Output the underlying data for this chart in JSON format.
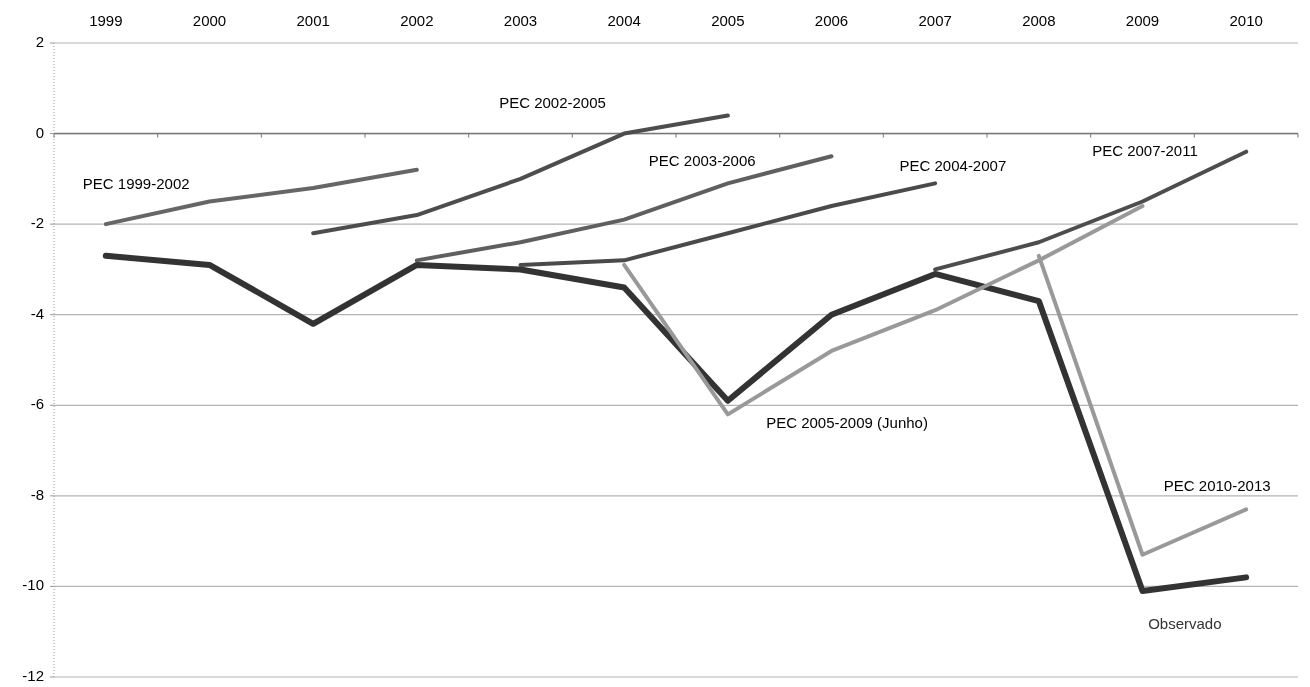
{
  "chart_data": {
    "type": "line",
    "categories": [
      "1999",
      "2000",
      "2001",
      "2002",
      "2003",
      "2004",
      "2005",
      "2006",
      "2007",
      "2008",
      "2009",
      "2010"
    ],
    "ylim": [
      -12,
      2
    ],
    "yticks": [
      -12,
      -10,
      -8,
      -6,
      -4,
      -2,
      0,
      2
    ],
    "grid": "y",
    "series": [
      {
        "name": "Observado",
        "color": "#333333",
        "values": [
          -2.7,
          -2.9,
          -4.2,
          -2.9,
          -3.0,
          -3.4,
          -5.9,
          -4.0,
          -3.1,
          -3.7,
          -10.1,
          -9.8
        ]
      },
      {
        "name": "PEC 1999-2002",
        "color": "#666666",
        "values": [
          -2.0,
          -1.5,
          -1.2,
          -0.8,
          null,
          null,
          null,
          null,
          null,
          null,
          null,
          null
        ]
      },
      {
        "name": "PEC 2002-2005",
        "color": "#4d4d4d",
        "values": [
          null,
          null,
          -2.2,
          -1.8,
          -1.0,
          0,
          0.4,
          null,
          null,
          null,
          null,
          null
        ]
      },
      {
        "name": "PEC 2003-2006",
        "color": "#5f5f5f",
        "values": [
          null,
          null,
          null,
          -2.8,
          -2.4,
          -1.9,
          -1.1,
          -0.5,
          null,
          null,
          null,
          null
        ]
      },
      {
        "name": "PEC 2004-2007",
        "color": "#4a4a4a",
        "values": [
          null,
          null,
          null,
          null,
          -2.9,
          -2.8,
          -2.2,
          -1.6,
          -1.1,
          null,
          null,
          null
        ]
      },
      {
        "name": "PEC 2005-2009 (Junho)",
        "color": "#999999",
        "values": [
          null,
          null,
          null,
          null,
          null,
          -2.9,
          -6.2,
          -4.8,
          -3.9,
          -2.8,
          -1.6,
          null
        ]
      },
      {
        "name": "PEC 2007-2011",
        "color": "#4d4d4d",
        "values": [
          null,
          null,
          null,
          null,
          null,
          null,
          null,
          null,
          -3.0,
          -2.4,
          -1.5,
          -0.4
        ]
      },
      {
        "name": "PEC 2010-2013",
        "color": "#999999",
        "values": [
          null,
          null,
          null,
          null,
          null,
          null,
          null,
          null,
          null,
          -2.7,
          -9.3,
          -8.3
        ]
      }
    ]
  }
}
